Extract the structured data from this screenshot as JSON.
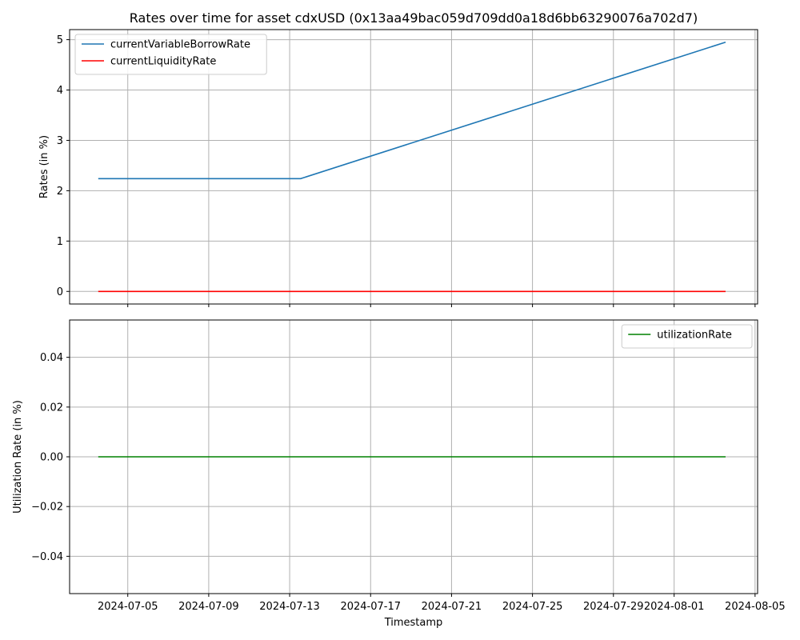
{
  "figure": {
    "title": "Rates over time for asset cdxUSD (0x13aa49bac059d709dd0a18d6bb63290076a702d7)"
  },
  "chart_data": [
    {
      "type": "line",
      "title": "Rates over time for asset cdxUSD (0x13aa49bac059d709dd0a18d6bb63290076a702d7)",
      "xlabel": "",
      "ylabel": "Rates (in %)",
      "xlim": [
        "2024-07-02T03:00",
        "2024-08-05T03:00"
      ],
      "ylim": [
        -0.25,
        5.2
      ],
      "xticks": [],
      "yticks": [
        0,
        1,
        2,
        3,
        4,
        5
      ],
      "ytick_labels": [
        "0",
        "1",
        "2",
        "3",
        "4",
        "5"
      ],
      "grid": true,
      "legend_position": "upper left",
      "series": [
        {
          "name": "currentVariableBorrowRate",
          "color": "#1f77b4",
          "x": [
            "2024-07-03T13:00",
            "2024-07-13T13:00",
            "2024-08-03T13:00"
          ],
          "y": [
            2.24,
            2.24,
            4.95
          ]
        },
        {
          "name": "currentLiquidityRate",
          "color": "#ff0000",
          "x": [
            "2024-07-03T13:00",
            "2024-08-03T13:00"
          ],
          "y": [
            0,
            0
          ]
        }
      ]
    },
    {
      "type": "line",
      "title": "",
      "xlabel": "Timestamp",
      "ylabel": "Utilization Rate (in %)",
      "xlim": [
        "2024-07-02T03:00",
        "2024-08-05T03:00"
      ],
      "ylim": [
        -0.055,
        0.055
      ],
      "xticks": [
        "2024-07-05",
        "2024-07-09",
        "2024-07-13",
        "2024-07-17",
        "2024-07-21",
        "2024-07-25",
        "2024-07-29",
        "2024-08-01",
        "2024-08-05"
      ],
      "yticks": [
        -0.04,
        -0.02,
        0.0,
        0.02,
        0.04
      ],
      "ytick_labels": [
        "−0.04",
        "−0.02",
        "0.00",
        "0.02",
        "0.04"
      ],
      "grid": true,
      "legend_position": "upper right",
      "series": [
        {
          "name": "utilizationRate",
          "color": "#008000",
          "x": [
            "2024-07-03T13:00",
            "2024-08-03T13:00"
          ],
          "y": [
            0,
            0
          ]
        }
      ]
    }
  ]
}
